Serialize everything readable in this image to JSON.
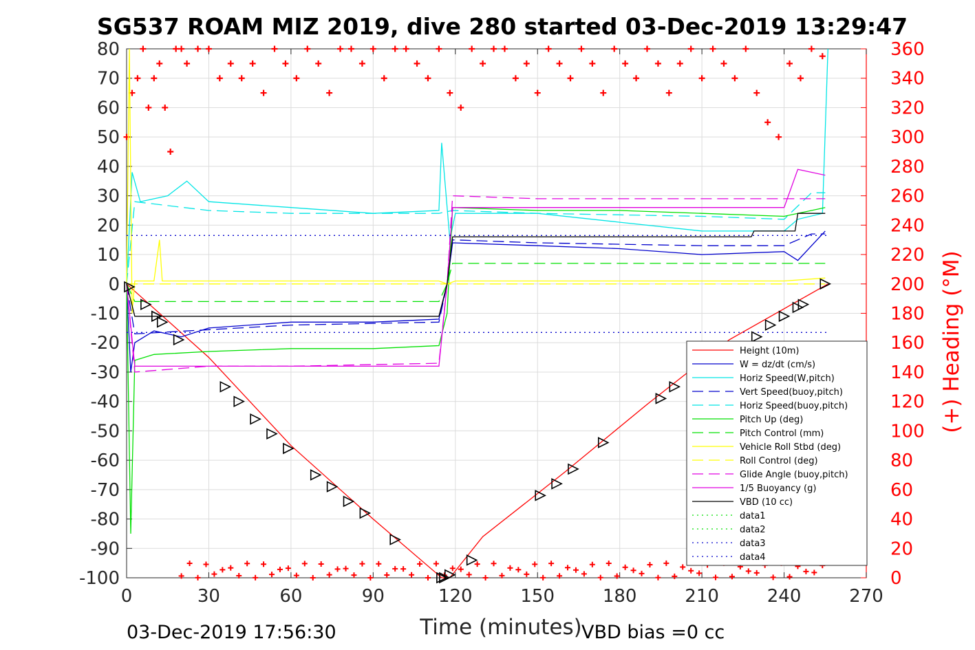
{
  "chart_data": {
    "type": "line",
    "title": "SG537 ROAM MIZ 2019, dive 280 started 03-Dec-2019 13:29:47",
    "xlabel": "Time (minutes)",
    "ylabel_left": "",
    "ylabel_right": "(+) Heading (°M)",
    "xlim": [
      0,
      270
    ],
    "ylim_left": [
      -100,
      80
    ],
    "ylim_right": [
      0,
      360
    ],
    "x_ticks": [
      0,
      30,
      60,
      90,
      120,
      150,
      180,
      210,
      240,
      270
    ],
    "y_ticks_left": [
      -100,
      -90,
      -80,
      -70,
      -60,
      -50,
      -40,
      -30,
      -20,
      -10,
      0,
      10,
      20,
      30,
      40,
      50,
      60,
      70,
      80
    ],
    "y_ticks_right": [
      0,
      20,
      40,
      60,
      80,
      100,
      120,
      140,
      160,
      180,
      200,
      220,
      240,
      260,
      280,
      300,
      320,
      340,
      360
    ],
    "grid": true,
    "legend_position": "bottom-right",
    "footer_left": "03-Dec-2019 17:56:30",
    "footer_right": "VBD bias =0 cc",
    "series": [
      {
        "name": "Height (10m)",
        "color": "#ff0000",
        "style": "solid",
        "x": [
          0,
          30,
          60,
          90,
          115,
          118,
          130,
          160,
          190,
          220,
          256
        ],
        "y": [
          0,
          -25,
          -55,
          -80,
          -100,
          -100,
          -86,
          -64,
          -41,
          -19,
          0
        ]
      },
      {
        "name": "W = dz/dt (cm/s)",
        "color": "#0000cc",
        "style": "solid",
        "x": [
          0,
          1.5,
          3,
          10,
          20,
          30,
          60,
          90,
          114,
          117,
          119,
          150,
          180,
          210,
          240,
          245,
          255
        ],
        "y": [
          0,
          -30,
          -20,
          -16,
          -18,
          -15,
          -13,
          -13,
          -12,
          0,
          14,
          13,
          12,
          10,
          11,
          8,
          18
        ]
      },
      {
        "name": "Horiz Speed(W,pitch)",
        "color": "#00e5e5",
        "style": "solid",
        "x": [
          0,
          2,
          5,
          15,
          22,
          30,
          60,
          90,
          114,
          115,
          118,
          120,
          150,
          180,
          210,
          240,
          245,
          254,
          256
        ],
        "y": [
          0,
          38,
          28,
          30,
          35,
          28,
          26,
          24,
          25,
          48,
          15,
          24,
          24,
          21,
          18,
          18,
          22,
          24,
          80
        ]
      },
      {
        "name": "Vert Speed(buoy,pitch)",
        "color": "#0000cc",
        "style": "dashed",
        "x": [
          0,
          3,
          60,
          114,
          117,
          119,
          150,
          210,
          240,
          250,
          255
        ],
        "y": [
          0,
          -17,
          -14,
          -13,
          0,
          15,
          14,
          13,
          13,
          17,
          17
        ]
      },
      {
        "name": "Horiz Speed(buoy,pitch)",
        "color": "#00e5e5",
        "style": "dashed",
        "x": [
          0,
          3,
          30,
          60,
          114,
          119,
          150,
          210,
          240,
          250,
          255
        ],
        "y": [
          0,
          28,
          25,
          24,
          24,
          25,
          24,
          23,
          22,
          31,
          31
        ]
      },
      {
        "name": "Pitch Up (deg)",
        "color": "#00e000",
        "style": "solid",
        "x": [
          0,
          1.5,
          3,
          10,
          30,
          60,
          90,
          114,
          117,
          119,
          150,
          180,
          210,
          240,
          255
        ],
        "y": [
          0,
          -85,
          -26,
          -24,
          -23,
          -22,
          -22,
          -21,
          -10,
          26,
          25,
          25,
          24,
          23,
          26
        ]
      },
      {
        "name": "Pitch Control (mm)",
        "color": "#00e000",
        "style": "dashed",
        "x": [
          0,
          3,
          114,
          117,
          119,
          228,
          229,
          255
        ],
        "y": [
          0,
          -6,
          -6,
          0,
          7,
          7,
          7,
          7
        ]
      },
      {
        "name": "Vehicle Roll Stbd (deg)",
        "color": "#ffff00",
        "style": "solid",
        "x": [
          0,
          1,
          2,
          3,
          10,
          12,
          13,
          20,
          30,
          60,
          90,
          114,
          117,
          120,
          150,
          180,
          210,
          240,
          255
        ],
        "y": [
          0,
          80,
          -10,
          1,
          1,
          15,
          1,
          1,
          1,
          1,
          1,
          1,
          0,
          1,
          1,
          1,
          1,
          1,
          2
        ]
      },
      {
        "name": "Roll Control (deg)",
        "color": "#ffff00",
        "style": "dashed",
        "x": [
          0,
          255
        ],
        "y": [
          0,
          0
        ]
      },
      {
        "name": "Glide Angle (buoy,pitch)",
        "color": "#e000e0",
        "style": "dashed",
        "x": [
          0,
          3,
          30,
          60,
          114,
          117,
          119,
          150,
          210,
          240,
          255
        ],
        "y": [
          0,
          -30,
          -28,
          -28,
          -27,
          0,
          30,
          29,
          29,
          29,
          29
        ]
      },
      {
        "name": "1/5 Buoyancy (g)",
        "color": "#e000e0",
        "style": "solid",
        "x": [
          0,
          3,
          114,
          117,
          119,
          240,
          245,
          255
        ],
        "y": [
          0,
          -28,
          -28,
          0,
          26,
          26,
          39,
          37
        ]
      },
      {
        "name": "VBD (10 cc)",
        "color": "#000000",
        "style": "solid",
        "x": [
          0,
          3,
          114,
          117,
          119,
          228,
          229,
          244,
          245,
          255
        ],
        "y": [
          0,
          -11,
          -11,
          0,
          16,
          16,
          18,
          18,
          24,
          24
        ]
      },
      {
        "name": "data1",
        "color": "#00e000",
        "style": "dotted",
        "x": [],
        "y": []
      },
      {
        "name": "data2",
        "color": "#00e000",
        "style": "dotted",
        "x": [],
        "y": []
      },
      {
        "name": "data3",
        "color": "#0000cc",
        "style": "dotted",
        "x": [
          0,
          256
        ],
        "y": [
          16.5,
          16.5
        ]
      },
      {
        "name": "data4",
        "color": "#0000cc",
        "style": "dotted",
        "x": [
          0,
          256
        ],
        "y": [
          -16.5,
          -16.5
        ]
      }
    ],
    "heading_series": {
      "name": "Heading",
      "color": "#ff0000",
      "marker": "+",
      "x": [
        0,
        2,
        4,
        6,
        8,
        10,
        12,
        14,
        16,
        18,
        20,
        22,
        26,
        30,
        34,
        38,
        42,
        46,
        50,
        54,
        58,
        62,
        66,
        70,
        74,
        78,
        82,
        86,
        90,
        94,
        98,
        102,
        106,
        110,
        114,
        118,
        122,
        126,
        130,
        134,
        138,
        142,
        146,
        150,
        154,
        158,
        162,
        166,
        170,
        174,
        178,
        182,
        186,
        190,
        194,
        198,
        202,
        206,
        210,
        214,
        218,
        222,
        226,
        230,
        234,
        238,
        242,
        246,
        250,
        254
      ],
      "y": [
        300,
        330,
        340,
        360,
        320,
        340,
        350,
        320,
        290,
        360,
        360,
        350,
        360,
        360,
        340,
        350,
        340,
        350,
        330,
        360,
        350,
        340,
        360,
        350,
        330,
        360,
        360,
        350,
        360,
        340,
        360,
        360,
        350,
        340,
        360,
        330,
        320,
        360,
        350,
        360,
        360,
        340,
        350,
        330,
        360,
        350,
        340,
        360,
        350,
        330,
        360,
        350,
        340,
        360,
        350,
        330,
        350,
        360,
        340,
        360,
        350,
        340,
        360,
        330,
        310,
        300,
        350,
        340,
        360,
        355
      ]
    },
    "markers": {
      "name": "Height markers",
      "x": [
        1,
        7,
        11,
        13,
        19,
        36,
        41,
        47,
        53,
        59,
        69,
        75,
        81,
        87,
        98,
        115,
        116,
        118,
        126,
        151,
        157,
        163,
        174,
        195,
        200,
        230,
        235,
        240,
        245,
        247,
        255
      ],
      "y": [
        -1,
        -7,
        -11,
        -13,
        -19,
        -35,
        -40,
        -46,
        -51,
        -56,
        -65,
        -69,
        -74,
        -78,
        -87,
        -100,
        -100,
        -99,
        -94,
        -72,
        -68,
        -63,
        -54,
        -39,
        -35,
        -18,
        -14,
        -11,
        -8,
        -7,
        0
      ]
    }
  }
}
